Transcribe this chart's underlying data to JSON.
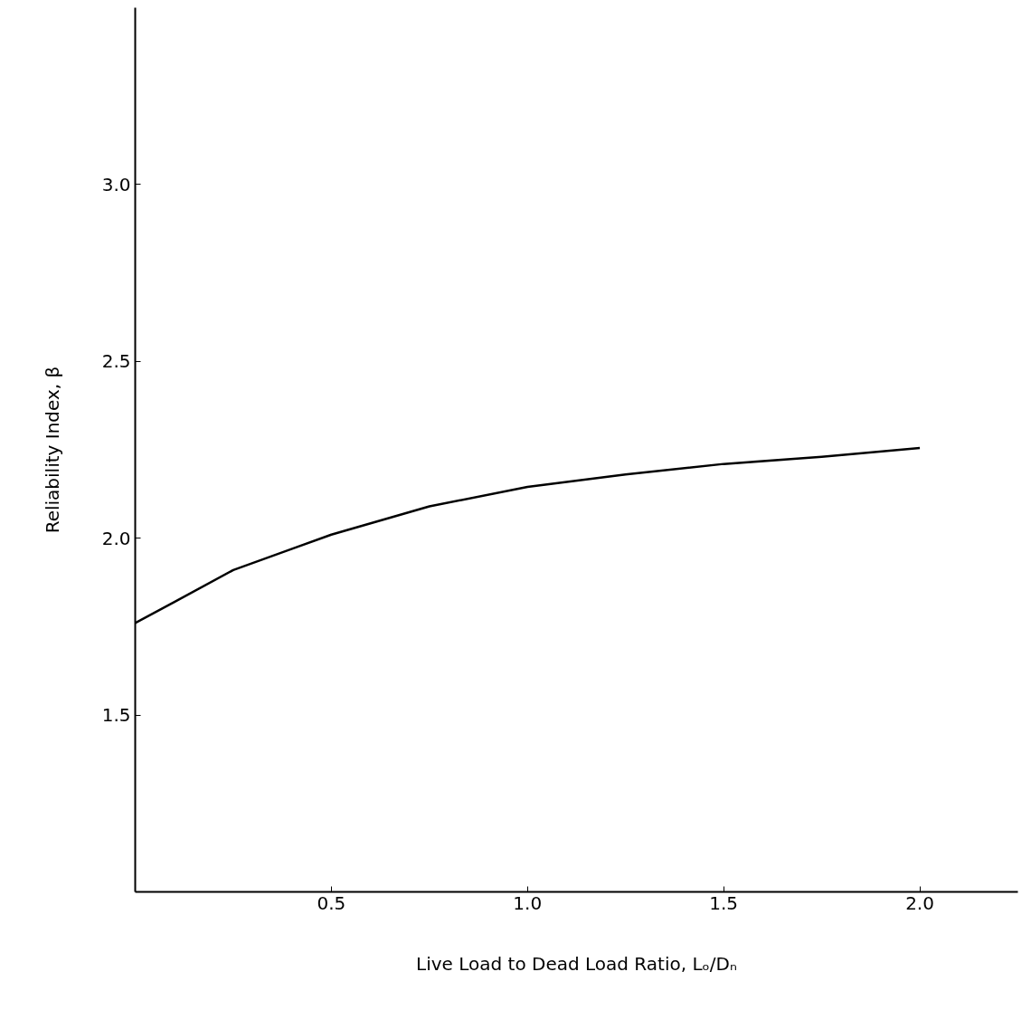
{
  "chart_data": {
    "type": "line",
    "xlabel": "Live Load to Dead Load Ratio, Lₒ/Dₙ",
    "ylabel": "Reliability Index, β",
    "x": [
      0,
      0.1,
      0.25,
      0.4,
      0.5,
      0.75,
      1.0,
      1.25,
      1.5,
      1.75,
      2.0
    ],
    "series": [
      {
        "color": "#000000",
        "values": [
          1.76,
          1.82,
          1.91,
          1.97,
          2.01,
          2.09,
          2.145,
          2.18,
          2.21,
          2.23,
          2.255
        ]
      }
    ],
    "xlim": [
      0,
      2.25
    ],
    "ylim": [
      1.0,
      3.5
    ],
    "xticks": [
      {
        "value": 0.5,
        "label": "0.5"
      },
      {
        "value": 1.0,
        "label": "1.0"
      },
      {
        "value": 1.5,
        "label": "1.5"
      },
      {
        "value": 2.0,
        "label": "2.0"
      }
    ],
    "yticks": [
      {
        "value": 1.5,
        "label": "1.5"
      },
      {
        "value": 2.0,
        "label": "2.0"
      },
      {
        "value": 2.5,
        "label": "2.5"
      },
      {
        "value": 3.0,
        "label": "3.0"
      }
    ],
    "grid": false,
    "marker": "none",
    "line_style": "solid"
  }
}
